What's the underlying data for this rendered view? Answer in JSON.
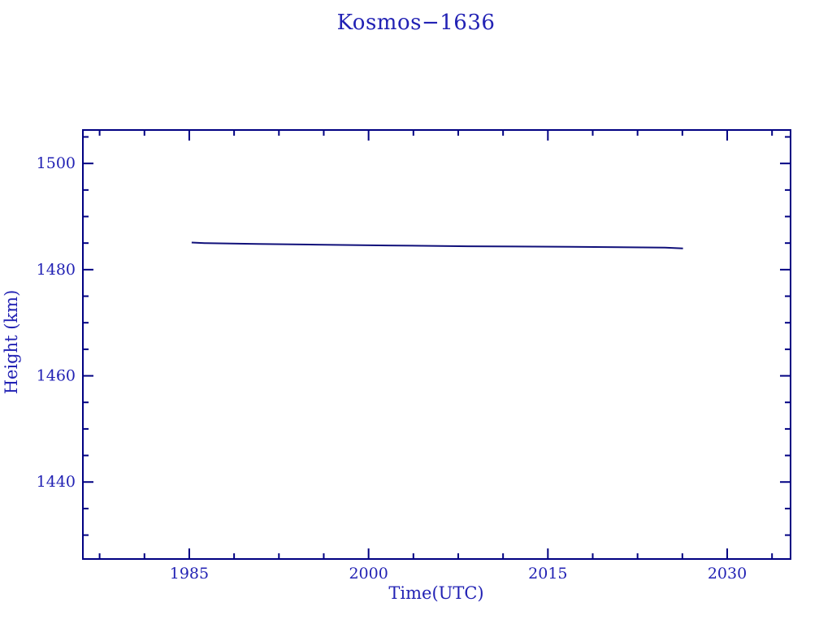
{
  "page": {
    "background_color": "#ffffff"
  },
  "chart_data": {
    "type": "line",
    "title": "Kosmos−1636",
    "xlabel": "Time(UTC)",
    "ylabel": "Height (km)",
    "xlim": [
      1976.1,
      2035.3
    ],
    "ylim": [
      1425.5,
      1506.3
    ],
    "x_major_ticks": [
      1985,
      2000,
      2015,
      2030
    ],
    "y_major_ticks": [
      1440,
      1460,
      1480,
      1500
    ],
    "x_minor_step": 3.75,
    "y_minor_step": 5,
    "grid": false,
    "legend": false,
    "tick_style": "inward-box-axes",
    "series": [
      {
        "name": "orbit-height",
        "color": "#10107a",
        "points": [
          [
            1985.2,
            1485.1
          ],
          [
            1986.3,
            1485.0
          ],
          [
            1990.7,
            1484.85
          ],
          [
            1995.6,
            1484.7
          ],
          [
            2001.6,
            1484.55
          ],
          [
            2008.3,
            1484.4
          ],
          [
            2016.8,
            1484.3
          ],
          [
            2024.8,
            1484.15
          ],
          [
            2026.3,
            1484.0
          ]
        ]
      }
    ],
    "colors": {
      "axis": "#000082",
      "text": "#2222b4",
      "line": "#10107a"
    }
  }
}
